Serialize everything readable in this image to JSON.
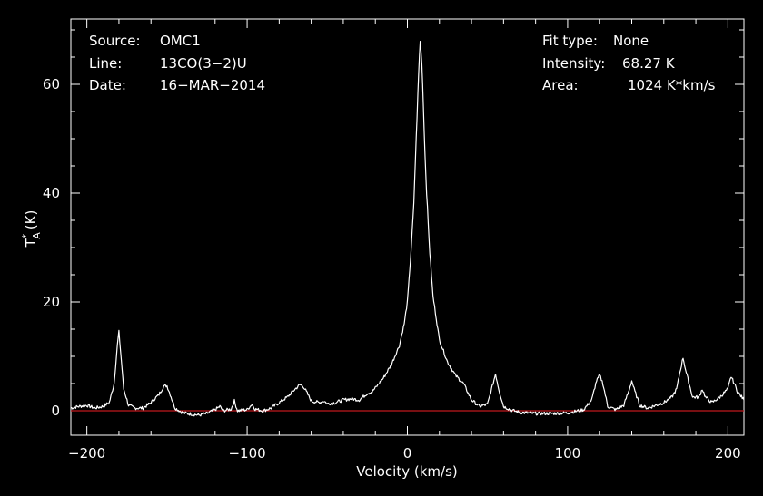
{
  "chart_data": {
    "type": "line",
    "xlabel": "Velocity (km/s)",
    "ylabel": "T",
    "ylabel_sup": "*",
    "ylabel_sub": "A",
    "ylabel_unit": "(K)",
    "xlim": [
      -210,
      210
    ],
    "ylim": [
      -4.5,
      72
    ],
    "xticks": [
      -200,
      -100,
      0,
      100,
      200
    ],
    "yticks": [
      0,
      20,
      40,
      60
    ],
    "baseline": {
      "y": 0,
      "color": "#c0181e"
    },
    "series": [
      {
        "color": "#ffffff",
        "x": [
          -210,
          -205,
          -200,
          -195,
          -190,
          -186,
          -183,
          -181,
          -180,
          -179,
          -177,
          -174,
          -170,
          -165,
          -160,
          -155,
          -152,
          -150,
          -148,
          -145,
          -140,
          -135,
          -130,
          -125,
          -120,
          -117,
          -115,
          -110,
          -108,
          -106,
          -100,
          -97,
          -95,
          -90,
          -85,
          -80,
          -75,
          -70,
          -67,
          -65,
          -63,
          -60,
          -55,
          -52,
          -50,
          -45,
          -40,
          -35,
          -30,
          -25,
          -22,
          -20,
          -15,
          -10,
          -5,
          -2,
          0,
          2,
          4,
          5,
          6,
          7,
          8,
          9,
          10,
          11,
          12,
          14,
          16,
          20,
          25,
          30,
          35,
          40,
          45,
          50,
          53,
          55,
          57,
          60,
          65,
          70,
          80,
          90,
          100,
          110,
          115,
          118,
          120,
          122,
          125,
          130,
          135,
          138,
          140,
          142,
          145,
          150,
          155,
          160,
          165,
          168,
          170,
          172,
          174,
          178,
          182,
          184,
          186,
          190,
          195,
          200,
          202,
          204,
          206,
          210
        ],
        "y": [
          0.5,
          0.8,
          1.0,
          0.5,
          0.8,
          1.5,
          5,
          12,
          14.5,
          11,
          4,
          1,
          0.5,
          0.5,
          1.5,
          3,
          4.5,
          4.6,
          3,
          0.5,
          -0.4,
          -0.6,
          -0.8,
          -0.5,
          0.2,
          0.8,
          0,
          0.3,
          1.8,
          0,
          0.2,
          1.2,
          0.3,
          0,
          0.5,
          1.5,
          2.5,
          4,
          4.8,
          4.5,
          3.5,
          1.8,
          1.5,
          1.8,
          1.3,
          1.5,
          2,
          2.2,
          2,
          3.2,
          3.5,
          4.2,
          6,
          8.5,
          12,
          16,
          20,
          28,
          38,
          46,
          54,
          62,
          68,
          64,
          56,
          47,
          40,
          29,
          21,
          13,
          9,
          6.5,
          5,
          2,
          0.8,
          1.2,
          4.5,
          6.8,
          4,
          0.8,
          0.1,
          -0.3,
          -0.5,
          -0.5,
          -0.4,
          0.2,
          2,
          5.5,
          6.5,
          5,
          0.8,
          0.2,
          1,
          3.5,
          5.5,
          3.5,
          1,
          0.5,
          1,
          1.5,
          2.5,
          4,
          7,
          9.8,
          7,
          2.5,
          2.5,
          4,
          2.5,
          1.5,
          2.5,
          4,
          6.3,
          5,
          3.5,
          2
        ]
      }
    ],
    "annotations": {
      "left": [
        {
          "label": "Source:",
          "value": "OMC1"
        },
        {
          "label": "Line:",
          "value": "13CO(3−2)U"
        },
        {
          "label": "Date:",
          "value": "16−MAR−2014"
        }
      ],
      "right": [
        {
          "label": "Fit type:",
          "value": "None"
        },
        {
          "label": "Intensity:",
          "value": "68.27 K"
        },
        {
          "label": "Area:",
          "value": "1024 K*km/s"
        }
      ]
    }
  }
}
